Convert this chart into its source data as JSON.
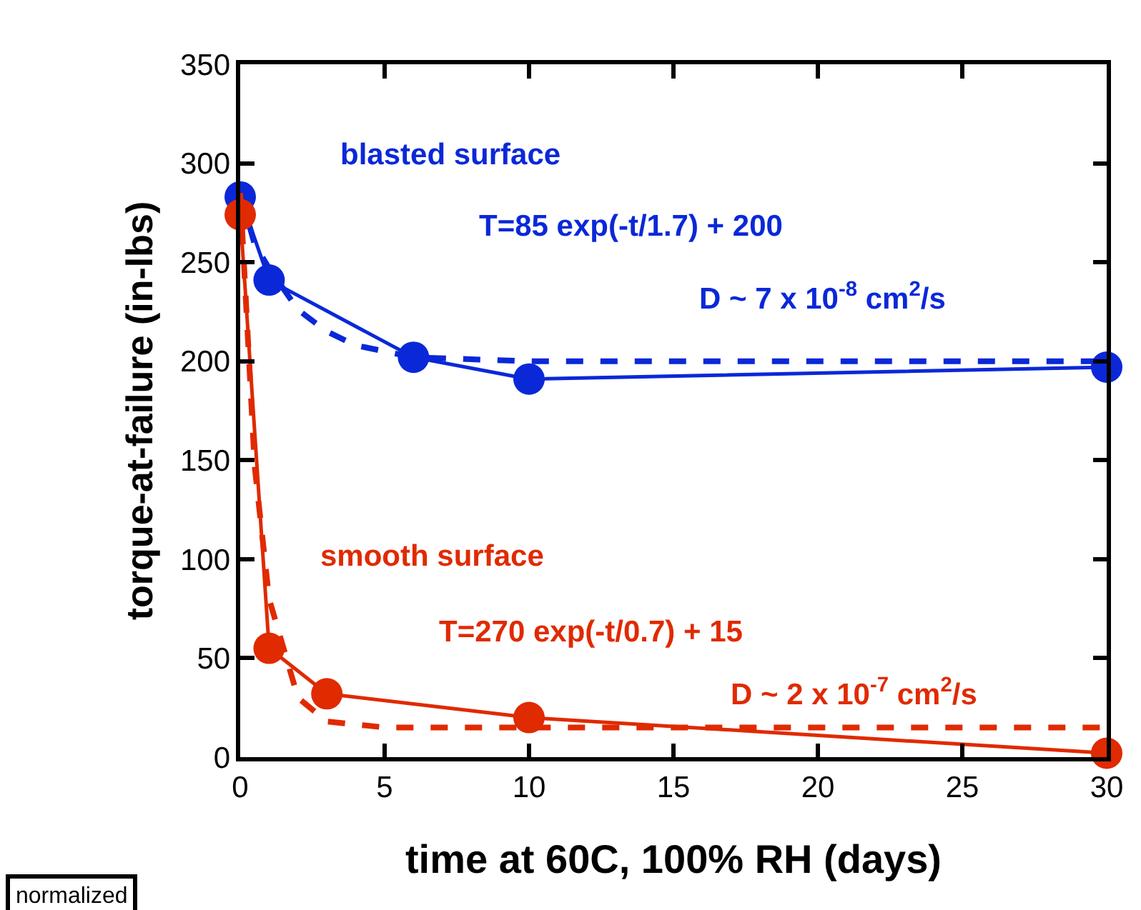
{
  "chart_data": {
    "type": "line",
    "xlabel": "time at 60C, 100% RH (days)",
    "ylabel": "torque-at-failure (in-lbs)",
    "xlim": [
      0,
      30
    ],
    "xticks": [
      0,
      5,
      10,
      15,
      20,
      25,
      30
    ],
    "ylim": [
      0,
      350
    ],
    "yticks": [
      0,
      50,
      100,
      150,
      200,
      250,
      300,
      350
    ],
    "legend": false,
    "series": [
      {
        "name": "blasted surface",
        "color": "#0a28d8",
        "x": [
          0,
          1,
          6,
          10,
          30
        ],
        "values": [
          283,
          241,
          202,
          191,
          197
        ],
        "marker": "circle",
        "line_style": "solid"
      },
      {
        "color": "#0a28d8",
        "x": [
          0,
          0.5,
          1,
          2,
          3,
          4,
          6,
          10,
          30
        ],
        "values": [
          285,
          259,
          247,
          226,
          215,
          208,
          202,
          200,
          200
        ],
        "marker": "none",
        "line_style": "dashed"
      },
      {
        "name": "smooth surface",
        "color": "#e02a00",
        "x": [
          0,
          1,
          3,
          10,
          30
        ],
        "values": [
          274,
          55,
          32,
          20,
          2
        ],
        "marker": "circle",
        "line_style": "solid"
      },
      {
        "color": "#e02a00",
        "x": [
          0,
          0.5,
          1,
          2,
          3,
          5,
          30
        ],
        "values": [
          285,
          147,
          80,
          30,
          18,
          15,
          15
        ],
        "marker": "none",
        "line_style": "dashed"
      }
    ],
    "annotations": [
      "T=85 exp(-t/1.7) + 200",
      "D ~ 7 x 10$^{-8}$ cm$^{2}$/s",
      "T=270 exp(-t/0.7) + 15",
      "D ~ 2 x 10$^{-7}$ cm$^{2}$/s",
      "normalized"
    ]
  }
}
